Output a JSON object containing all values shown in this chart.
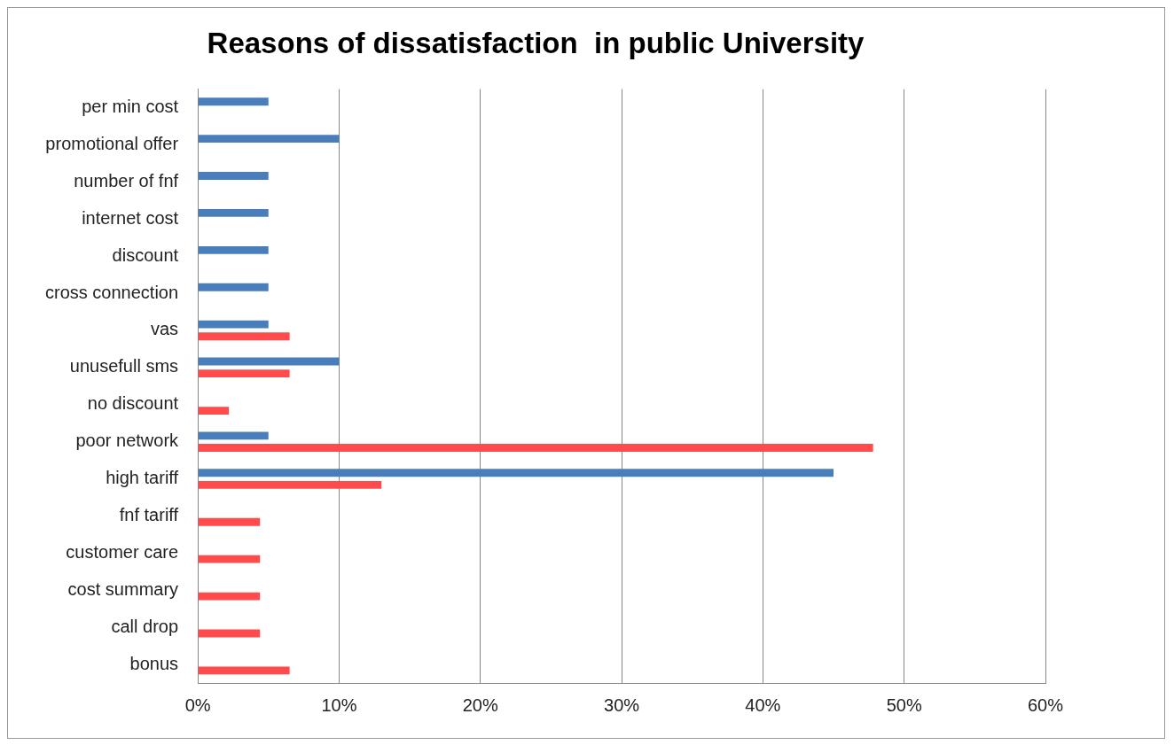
{
  "chart_data": {
    "type": "bar",
    "orientation": "horizontal",
    "title": "Reasons of dissatisfaction  in public University",
    "categories": [
      "per min cost",
      "promotional offer",
      "number of fnf",
      "internet cost",
      "discount",
      "cross connection",
      "vas",
      "unusefull sms",
      "no discount",
      "poor network",
      "high tariff",
      "fnf tariff",
      "customer care",
      "cost summary",
      "call drop",
      "bonus"
    ],
    "series": [
      {
        "color": "#4a7ebb",
        "values": [
          5,
          10,
          5,
          5,
          5,
          5,
          5,
          10,
          null,
          5,
          45,
          null,
          null,
          null,
          null,
          null
        ]
      },
      {
        "color": "#ff4b4b",
        "values": [
          null,
          null,
          null,
          null,
          null,
          null,
          6.5,
          6.5,
          2.2,
          47.8,
          13,
          4.4,
          4.4,
          4.4,
          4.4,
          6.5
        ]
      }
    ],
    "xlim": [
      0,
      60
    ],
    "xticks": [
      {
        "value": 0,
        "label": "0%"
      },
      {
        "value": 10,
        "label": "10%"
      },
      {
        "value": 20,
        "label": "20%"
      },
      {
        "value": 30,
        "label": "30%"
      },
      {
        "value": 40,
        "label": "40%"
      },
      {
        "value": 50,
        "label": "50%"
      },
      {
        "value": 60,
        "label": "60%"
      }
    ],
    "grid": "x"
  }
}
